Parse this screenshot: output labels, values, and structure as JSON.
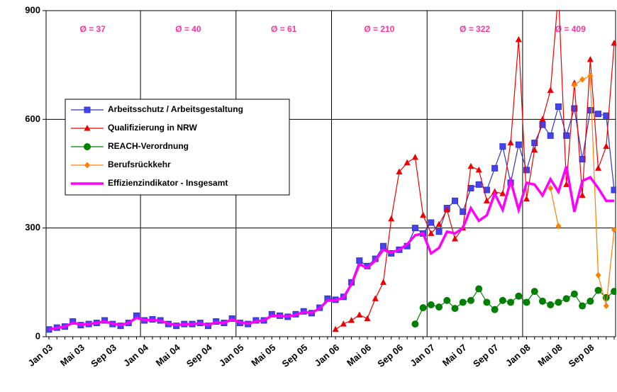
{
  "chart_data": {
    "type": "line",
    "categories": [
      "Jan 03",
      null,
      null,
      null,
      "Mai 03",
      null,
      null,
      null,
      "Sep 03",
      null,
      null,
      null,
      "Jan 04",
      null,
      null,
      null,
      "Mai 04",
      null,
      null,
      null,
      "Sep 04",
      null,
      null,
      null,
      "Jan 05",
      null,
      null,
      null,
      "Mai 05",
      null,
      null,
      null,
      "Sep 05",
      null,
      null,
      null,
      "Jan 06",
      null,
      null,
      null,
      "Mai 06",
      null,
      null,
      null,
      "Sep 06",
      null,
      null,
      null,
      "Jan 07",
      null,
      null,
      null,
      "Mai 07",
      null,
      null,
      null,
      "Sep 07",
      null,
      null,
      null,
      "Jan 08",
      null,
      null,
      null,
      "Mai 08",
      null,
      null,
      null,
      "Sep 08",
      null,
      null,
      null
    ],
    "ylim": [
      0,
      900
    ],
    "yticks": [
      0,
      300,
      600,
      900
    ],
    "grid": true,
    "annotations": [
      "Ø = 37",
      "Ø = 40",
      "Ø = 61",
      "Ø = 210",
      "Ø = 322",
      "Ø = 409"
    ],
    "series": [
      {
        "name": "Arbeitsschutz / Arbeitsgestaltung",
        "color": "#3333cc",
        "marker": "square",
        "values": [
          20,
          25,
          28,
          42,
          32,
          35,
          38,
          45,
          35,
          30,
          38,
          58,
          45,
          48,
          45,
          35,
          30,
          35,
          35,
          38,
          30,
          42,
          38,
          50,
          38,
          35,
          45,
          45,
          62,
          58,
          55,
          62,
          70,
          65,
          80,
          105,
          102,
          110,
          150,
          210,
          195,
          215,
          250,
          230,
          240,
          250,
          300,
          285,
          315,
          290,
          355,
          375,
          345,
          410,
          420,
          405,
          465,
          525,
          425,
          530,
          460,
          535,
          585,
          555,
          635,
          555,
          630,
          490,
          625,
          615,
          610,
          405
        ]
      },
      {
        "name": "Qualifizierung in NRW",
        "color": "#ee0000",
        "marker": "triangle",
        "values": [
          null,
          null,
          null,
          null,
          null,
          null,
          null,
          null,
          null,
          null,
          null,
          null,
          null,
          null,
          null,
          null,
          null,
          null,
          null,
          null,
          null,
          null,
          null,
          null,
          null,
          null,
          null,
          null,
          null,
          null,
          null,
          null,
          null,
          null,
          null,
          null,
          20,
          35,
          45,
          60,
          50,
          105,
          150,
          325,
          455,
          480,
          495,
          335,
          285,
          310,
          350,
          270,
          300,
          470,
          460,
          375,
          400,
          395,
          535,
          820,
          380,
          515,
          600,
          680,
          950,
          420,
          700,
          390,
          765,
          465,
          525,
          810
        ]
      },
      {
        "name": "REACH-Verordnung",
        "color": "#008000",
        "marker": "circle",
        "values": [
          null,
          null,
          null,
          null,
          null,
          null,
          null,
          null,
          null,
          null,
          null,
          null,
          null,
          null,
          null,
          null,
          null,
          null,
          null,
          null,
          null,
          null,
          null,
          null,
          null,
          null,
          null,
          null,
          null,
          null,
          null,
          null,
          null,
          null,
          null,
          null,
          null,
          null,
          null,
          null,
          null,
          null,
          null,
          null,
          null,
          null,
          35,
          80,
          88,
          82,
          100,
          78,
          95,
          100,
          132,
          95,
          75,
          100,
          95,
          112,
          95,
          125,
          98,
          88,
          95,
          105,
          118,
          85,
          98,
          128,
          108,
          125
        ]
      },
      {
        "name": "Berufsrückkehr",
        "color": "#ff8000",
        "marker": "diamond",
        "values": [
          null,
          null,
          null,
          null,
          null,
          null,
          null,
          null,
          null,
          null,
          null,
          null,
          null,
          null,
          null,
          null,
          null,
          null,
          null,
          null,
          null,
          null,
          null,
          null,
          null,
          null,
          null,
          null,
          null,
          null,
          null,
          null,
          null,
          null,
          null,
          null,
          null,
          null,
          null,
          null,
          null,
          null,
          null,
          null,
          null,
          null,
          null,
          null,
          null,
          null,
          null,
          null,
          null,
          null,
          null,
          null,
          null,
          null,
          null,
          null,
          null,
          null,
          null,
          410,
          305,
          null,
          695,
          710,
          720,
          170,
          85,
          295
        ]
      },
      {
        "name": "Effizienzindikator - Insgesamt",
        "color": "#ff00ff",
        "marker": "none",
        "values": [
          20,
          24,
          28,
          38,
          34,
          35,
          38,
          42,
          36,
          32,
          38,
          52,
          46,
          46,
          44,
          36,
          32,
          34,
          35,
          37,
          32,
          40,
          38,
          48,
          40,
          36,
          42,
          45,
          58,
          57,
          56,
          60,
          68,
          66,
          78,
          100,
          100,
          108,
          145,
          200,
          190,
          210,
          240,
          232,
          240,
          255,
          280,
          285,
          230,
          245,
          290,
          285,
          300,
          355,
          320,
          335,
          395,
          350,
          430,
          350,
          425,
          420,
          390,
          435,
          400,
          470,
          345,
          430,
          440,
          410,
          375,
          375
        ]
      }
    ]
  }
}
